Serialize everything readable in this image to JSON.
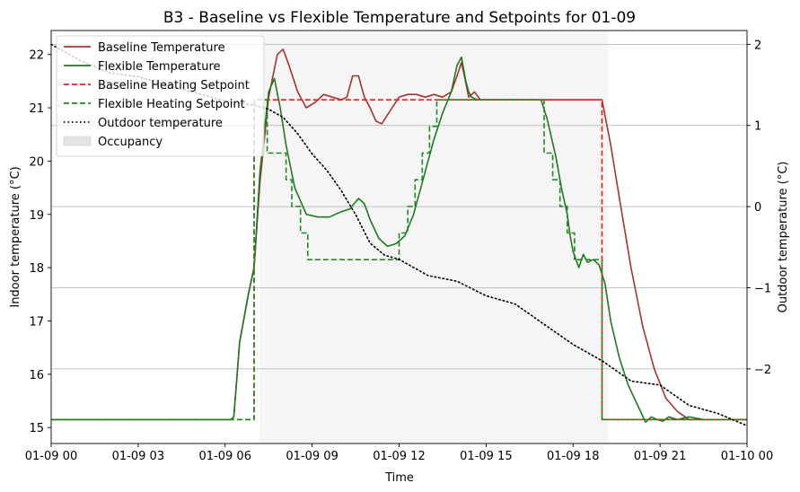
{
  "chart_data": {
    "type": "line",
    "title": "B3 - Baseline vs Flexible Temperature and Setpoints for 01-09",
    "xlabel": "Time",
    "ylabel": "Indoor temperature (°C)",
    "y2label": "Outdoor temperature (°C)",
    "xlim": [
      0,
      24
    ],
    "ylim": [
      14.7,
      22.45
    ],
    "y2lim": [
      -2.92,
      2.17
    ],
    "x_ticks": [
      {
        "value": 0,
        "label": "01-09 00"
      },
      {
        "value": 3,
        "label": "01-09 03"
      },
      {
        "value": 6,
        "label": "01-09 06"
      },
      {
        "value": 9,
        "label": "01-09 09"
      },
      {
        "value": 12,
        "label": "01-09 12"
      },
      {
        "value": 15,
        "label": "01-09 15"
      },
      {
        "value": 18,
        "label": "01-09 18"
      },
      {
        "value": 21,
        "label": "01-09 21"
      },
      {
        "value": 24,
        "label": "01-10 00"
      }
    ],
    "y_ticks": [
      {
        "value": 15,
        "label": "15"
      },
      {
        "value": 16,
        "label": "16"
      },
      {
        "value": 17,
        "label": "17"
      },
      {
        "value": 18,
        "label": "18"
      },
      {
        "value": 19,
        "label": "19"
      },
      {
        "value": 20,
        "label": "20"
      },
      {
        "value": 21,
        "label": "21"
      },
      {
        "value": 22,
        "label": "22"
      }
    ],
    "y2_ticks": [
      {
        "value": 2,
        "label": "2"
      },
      {
        "value": 1,
        "label": "1"
      },
      {
        "value": 0,
        "label": "0"
      },
      {
        "value": -1,
        "label": "−1"
      },
      {
        "value": -2,
        "label": "−2"
      }
    ],
    "grid": "right-axis horizontal",
    "legend_position": "top-left",
    "occupancy": {
      "name": "Occupancy",
      "start": 7.2,
      "end": 19.2,
      "color": "#ebebeb"
    },
    "series": [
      {
        "name": "Baseline Temperature",
        "axis": "left",
        "color": "#a83232",
        "style": "solid",
        "points": [
          [
            0,
            15.15
          ],
          [
            6.2,
            15.15
          ],
          [
            6.3,
            15.2
          ],
          [
            6.5,
            16.6
          ],
          [
            6.8,
            17.5
          ],
          [
            7.0,
            18.0
          ],
          [
            7.2,
            19.6
          ],
          [
            7.5,
            21.2
          ],
          [
            7.8,
            22.0
          ],
          [
            8.0,
            22.1
          ],
          [
            8.2,
            21.8
          ],
          [
            8.5,
            21.3
          ],
          [
            8.8,
            21.0
          ],
          [
            9.1,
            21.1
          ],
          [
            9.4,
            21.25
          ],
          [
            9.7,
            21.2
          ],
          [
            10.0,
            21.15
          ],
          [
            10.2,
            21.2
          ],
          [
            10.4,
            21.6
          ],
          [
            10.6,
            21.6
          ],
          [
            10.8,
            21.2
          ],
          [
            11.0,
            21.0
          ],
          [
            11.2,
            20.75
          ],
          [
            11.4,
            20.7
          ],
          [
            11.7,
            20.95
          ],
          [
            12.0,
            21.2
          ],
          [
            12.3,
            21.25
          ],
          [
            12.6,
            21.25
          ],
          [
            12.9,
            21.2
          ],
          [
            13.2,
            21.25
          ],
          [
            13.5,
            21.2
          ],
          [
            13.8,
            21.3
          ],
          [
            14.0,
            21.6
          ],
          [
            14.15,
            21.85
          ],
          [
            14.25,
            21.6
          ],
          [
            14.4,
            21.2
          ],
          [
            14.6,
            21.3
          ],
          [
            14.8,
            21.15
          ],
          [
            15.0,
            21.15
          ],
          [
            17.0,
            21.15
          ],
          [
            18.0,
            21.15
          ],
          [
            19.0,
            21.15
          ],
          [
            19.3,
            20.3
          ],
          [
            19.6,
            19.3
          ],
          [
            20.0,
            18.0
          ],
          [
            20.4,
            16.9
          ],
          [
            20.8,
            16.1
          ],
          [
            21.2,
            15.55
          ],
          [
            21.6,
            15.3
          ],
          [
            22.0,
            15.15
          ],
          [
            22.5,
            15.15
          ],
          [
            23,
            15.15
          ],
          [
            24,
            15.15
          ]
        ]
      },
      {
        "name": "Flexible Temperature",
        "axis": "left",
        "color": "#1f7a1f",
        "style": "solid",
        "points": [
          [
            0,
            15.15
          ],
          [
            6.2,
            15.15
          ],
          [
            6.3,
            15.2
          ],
          [
            6.5,
            16.6
          ],
          [
            6.8,
            17.5
          ],
          [
            7.0,
            18.0
          ],
          [
            7.2,
            19.8
          ],
          [
            7.5,
            21.3
          ],
          [
            7.7,
            21.55
          ],
          [
            7.9,
            21.0
          ],
          [
            8.1,
            20.3
          ],
          [
            8.4,
            19.5
          ],
          [
            8.8,
            19.0
          ],
          [
            9.2,
            18.95
          ],
          [
            9.6,
            18.95
          ],
          [
            10.0,
            19.05
          ],
          [
            10.3,
            19.1
          ],
          [
            10.6,
            19.3
          ],
          [
            10.8,
            19.2
          ],
          [
            11.0,
            18.9
          ],
          [
            11.3,
            18.55
          ],
          [
            11.6,
            18.4
          ],
          [
            11.9,
            18.45
          ],
          [
            12.2,
            18.6
          ],
          [
            12.5,
            19.0
          ],
          [
            12.8,
            19.6
          ],
          [
            13.2,
            20.4
          ],
          [
            13.5,
            20.9
          ],
          [
            13.8,
            21.3
          ],
          [
            14.0,
            21.8
          ],
          [
            14.15,
            21.95
          ],
          [
            14.3,
            21.5
          ],
          [
            14.4,
            21.3
          ],
          [
            14.5,
            21.2
          ],
          [
            14.7,
            21.15
          ],
          [
            16.0,
            21.15
          ],
          [
            16.9,
            21.15
          ],
          [
            17.1,
            20.8
          ],
          [
            17.4,
            20.1
          ],
          [
            17.6,
            19.5
          ],
          [
            17.8,
            19.0
          ],
          [
            17.9,
            18.6
          ],
          [
            18.0,
            18.3
          ],
          [
            18.2,
            18.0
          ],
          [
            18.35,
            18.25
          ],
          [
            18.5,
            18.1
          ],
          [
            18.7,
            18.15
          ],
          [
            18.9,
            18.05
          ],
          [
            19.1,
            17.7
          ],
          [
            19.3,
            17.0
          ],
          [
            19.6,
            16.3
          ],
          [
            19.9,
            15.8
          ],
          [
            20.2,
            15.45
          ],
          [
            20.5,
            15.1
          ],
          [
            20.7,
            15.2
          ],
          [
            20.9,
            15.15
          ],
          [
            21.1,
            15.12
          ],
          [
            21.3,
            15.2
          ],
          [
            21.6,
            15.15
          ],
          [
            22.0,
            15.2
          ],
          [
            22.5,
            15.15
          ],
          [
            23,
            15.15
          ],
          [
            24,
            15.15
          ]
        ]
      },
      {
        "name": "Baseline Heating Setpoint",
        "axis": "left",
        "color": "#e02020",
        "style": "dashed",
        "points": [
          [
            0,
            15.15
          ],
          [
            7.0,
            15.15
          ],
          [
            7.0,
            21.15
          ],
          [
            19.0,
            21.15
          ],
          [
            19.0,
            15.15
          ],
          [
            24,
            15.15
          ]
        ]
      },
      {
        "name": "Flexible Heating Setpoint",
        "axis": "left",
        "color": "#1f8a1f",
        "style": "dashed",
        "points": [
          [
            0,
            15.15
          ],
          [
            7.0,
            15.15
          ],
          [
            7.0,
            21.15
          ],
          [
            7.45,
            21.15
          ],
          [
            7.45,
            20.15
          ],
          [
            8.1,
            20.15
          ],
          [
            8.1,
            19.65
          ],
          [
            8.3,
            19.65
          ],
          [
            8.3,
            19.15
          ],
          [
            8.6,
            19.15
          ],
          [
            8.6,
            18.65
          ],
          [
            8.85,
            18.65
          ],
          [
            8.85,
            18.15
          ],
          [
            12.0,
            18.15
          ],
          [
            12.0,
            18.65
          ],
          [
            12.3,
            18.65
          ],
          [
            12.3,
            19.15
          ],
          [
            12.55,
            19.15
          ],
          [
            12.55,
            19.65
          ],
          [
            12.8,
            19.65
          ],
          [
            12.8,
            20.15
          ],
          [
            13.05,
            20.15
          ],
          [
            13.05,
            20.65
          ],
          [
            13.3,
            20.65
          ],
          [
            13.3,
            21.15
          ],
          [
            17.0,
            21.15
          ],
          [
            17.0,
            20.15
          ],
          [
            17.3,
            20.15
          ],
          [
            17.3,
            19.65
          ],
          [
            17.55,
            19.65
          ],
          [
            17.55,
            19.15
          ],
          [
            17.8,
            19.15
          ],
          [
            17.8,
            18.65
          ],
          [
            18.05,
            18.65
          ],
          [
            18.05,
            18.15
          ],
          [
            19.0,
            18.15
          ],
          [
            19.0,
            15.15
          ],
          [
            24,
            15.15
          ]
        ]
      },
      {
        "name": "Outdoor temperature",
        "axis": "right",
        "color": "#000000",
        "style": "dotted",
        "points": [
          [
            0,
            2.0
          ],
          [
            1.0,
            1.8
          ],
          [
            2.0,
            1.65
          ],
          [
            3.0,
            1.6
          ],
          [
            4.0,
            1.5
          ],
          [
            5.0,
            1.4
          ],
          [
            6.0,
            1.3
          ],
          [
            7.0,
            1.25
          ],
          [
            7.5,
            1.2
          ],
          [
            8.0,
            1.1
          ],
          [
            8.5,
            0.9
          ],
          [
            9.0,
            0.65
          ],
          [
            9.5,
            0.45
          ],
          [
            10.0,
            0.2
          ],
          [
            10.5,
            -0.1
          ],
          [
            11.0,
            -0.45
          ],
          [
            11.5,
            -0.6
          ],
          [
            12.0,
            -0.65
          ],
          [
            12.5,
            -0.75
          ],
          [
            13.0,
            -0.85
          ],
          [
            14.0,
            -0.92
          ],
          [
            15.0,
            -1.1
          ],
          [
            16.0,
            -1.2
          ],
          [
            17.0,
            -1.45
          ],
          [
            18.0,
            -1.7
          ],
          [
            19.0,
            -1.9
          ],
          [
            20.0,
            -2.15
          ],
          [
            21.0,
            -2.2
          ],
          [
            22.0,
            -2.45
          ],
          [
            23.0,
            -2.55
          ],
          [
            24.0,
            -2.7
          ]
        ]
      }
    ]
  }
}
